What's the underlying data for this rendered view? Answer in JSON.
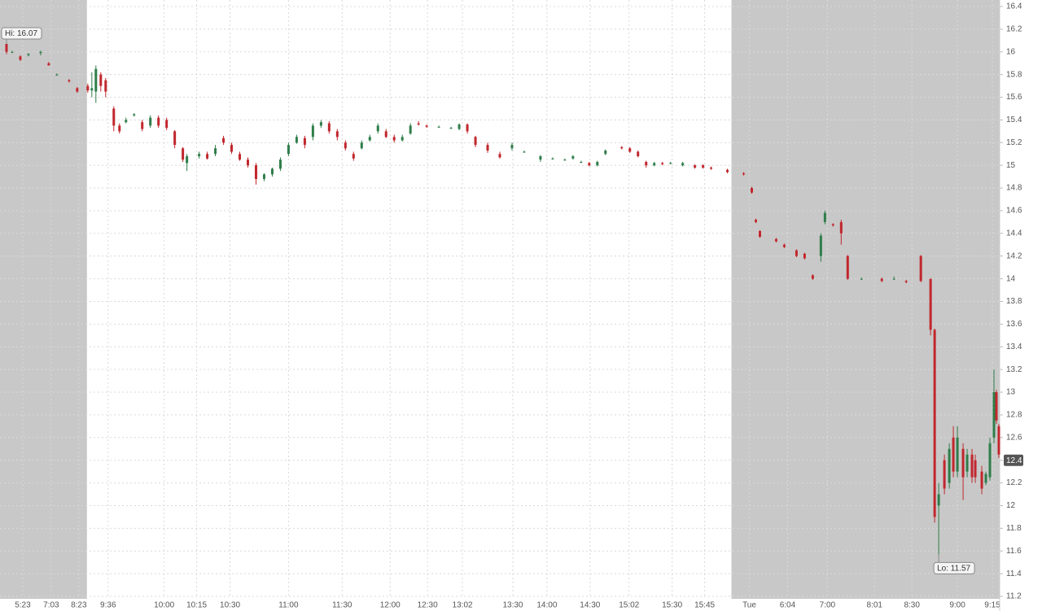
{
  "chart_data": {
    "type": "candlestick",
    "series": {
      "x": [
        0.8,
        1.5,
        2.5,
        3.5,
        5.0,
        6.0,
        7.0,
        8.5,
        9.5,
        10.8,
        11.3,
        11.8,
        12.4,
        13.0,
        14.0,
        14.7,
        15.5,
        16.5,
        17.5,
        18.5,
        19.5,
        20.5,
        21.5,
        22.5,
        23.0,
        24.5,
        25.5,
        26.5,
        27.5,
        28.5,
        29.5,
        30.5,
        31.5,
        32.5,
        33.5,
        34.5,
        35.5,
        36.5,
        37.5,
        38.5,
        39.5,
        40.5,
        41.5,
        42.5,
        43.5,
        44.5,
        45.5,
        46.5,
        47.5,
        48.5,
        49.5,
        50.5,
        51.5,
        52.5,
        54.0,
        55.5,
        56.5,
        57.5,
        58.5,
        60.0,
        61.5,
        63.0,
        64.5,
        66.5,
        68.0,
        69.5,
        70.5,
        71.5,
        72.5,
        73.5,
        74.5,
        76.5,
        77.5,
        78.5,
        79.5,
        80.5,
        81.5,
        82.5,
        84.0,
        85.5,
        86.5,
        87.5,
        89.5,
        91.5,
        92.5,
        93.0,
        93.5,
        95.5,
        96.5,
        98.0,
        99.0,
        100.0,
        101.0,
        101.5,
        102.5,
        103.5,
        104.3,
        106.0,
        108.5,
        110.0,
        111.5,
        113.3,
        114.5,
        115.0,
        115.5,
        116.2,
        116.8,
        117.3,
        117.8,
        118.5,
        119.0,
        119.6,
        120.0,
        120.8,
        121.3,
        121.8,
        122.3,
        122.6,
        122.9
      ],
      "open": [
        16.07,
        16.0,
        15.96,
        15.97,
        15.99,
        15.9,
        15.8,
        15.75,
        15.68,
        15.7,
        15.66,
        15.65,
        15.8,
        15.75,
        15.5,
        15.35,
        15.38,
        15.44,
        15.38,
        15.35,
        15.42,
        15.4,
        15.3,
        15.15,
        15.02,
        15.08,
        15.1,
        15.1,
        15.24,
        15.18,
        15.1,
        15.05,
        15.0,
        14.88,
        14.92,
        14.97,
        15.1,
        15.2,
        15.24,
        15.25,
        15.35,
        15.37,
        15.3,
        15.2,
        15.1,
        15.15,
        15.22,
        15.3,
        15.3,
        15.25,
        15.22,
        15.28,
        15.37,
        15.35,
        15.34,
        15.33,
        15.32,
        15.36,
        15.25,
        15.18,
        15.1,
        15.15,
        15.12,
        15.05,
        15.06,
        15.05,
        15.06,
        15.03,
        15.02,
        15.0,
        15.1,
        15.16,
        15.15,
        15.12,
        15.03,
        15.0,
        15.02,
        15.02,
        15.0,
        15.0,
        15.0,
        14.98,
        14.96,
        14.93,
        14.8,
        14.52,
        14.42,
        14.35,
        14.3,
        14.25,
        14.22,
        14.03,
        14.2,
        14.5,
        14.48,
        14.5,
        14.2,
        14.0,
        14.0,
        14.0,
        13.98,
        14.2,
        14.0,
        13.55,
        12.0,
        12.4,
        12.2,
        12.6,
        12.3,
        12.5,
        12.3,
        12.45,
        12.4,
        12.3,
        12.2,
        12.25,
        12.6,
        13.0,
        12.7
      ],
      "high": [
        16.07,
        16.01,
        15.97,
        15.99,
        16.01,
        15.91,
        15.81,
        15.76,
        15.69,
        15.72,
        15.82,
        15.88,
        15.82,
        15.77,
        15.52,
        15.37,
        15.42,
        15.46,
        15.4,
        15.44,
        15.44,
        15.42,
        15.31,
        15.16,
        15.1,
        15.12,
        15.12,
        15.18,
        15.26,
        15.2,
        15.12,
        15.07,
        15.02,
        14.93,
        14.98,
        15.07,
        15.2,
        15.27,
        15.26,
        15.37,
        15.4,
        15.39,
        15.32,
        15.22,
        15.12,
        15.22,
        15.27,
        15.37,
        15.32,
        15.27,
        15.27,
        15.37,
        15.39,
        15.36,
        15.35,
        15.34,
        15.37,
        15.37,
        15.26,
        15.2,
        15.12,
        15.2,
        15.13,
        15.09,
        15.07,
        15.06,
        15.09,
        15.04,
        15.03,
        15.04,
        15.14,
        15.17,
        15.16,
        15.13,
        15.04,
        15.03,
        15.03,
        15.03,
        15.03,
        15.01,
        15.01,
        14.99,
        14.97,
        14.94,
        14.81,
        14.53,
        14.43,
        14.36,
        14.31,
        14.26,
        14.23,
        14.04,
        14.4,
        14.6,
        14.49,
        14.52,
        14.21,
        14.01,
        14.01,
        14.02,
        13.99,
        14.21,
        14.0,
        13.56,
        12.2,
        12.45,
        12.55,
        12.7,
        12.7,
        12.55,
        12.5,
        12.5,
        12.45,
        12.35,
        12.3,
        12.6,
        13.2,
        13.02,
        12.72
      ],
      "low": [
        15.98,
        15.99,
        15.92,
        15.96,
        15.97,
        15.88,
        15.79,
        15.73,
        15.64,
        15.64,
        15.6,
        15.55,
        15.65,
        15.6,
        15.3,
        15.28,
        15.37,
        15.43,
        15.3,
        15.33,
        15.33,
        15.31,
        15.15,
        15.03,
        14.95,
        15.06,
        15.05,
        15.08,
        15.18,
        15.1,
        15.04,
        14.98,
        14.83,
        14.86,
        14.9,
        14.95,
        15.08,
        15.19,
        15.15,
        15.22,
        15.33,
        15.28,
        15.22,
        15.13,
        15.04,
        15.14,
        15.21,
        15.28,
        15.24,
        15.2,
        15.21,
        15.27,
        15.35,
        15.33,
        15.33,
        15.32,
        15.31,
        15.28,
        15.16,
        15.11,
        15.06,
        15.13,
        15.11,
        15.03,
        15.05,
        15.04,
        15.05,
        15.02,
        14.99,
        14.99,
        15.09,
        15.14,
        15.11,
        15.07,
        14.98,
        14.99,
        15.0,
        15.01,
        14.99,
        14.97,
        14.97,
        14.96,
        14.93,
        14.91,
        14.75,
        14.49,
        14.36,
        14.32,
        14.27,
        14.19,
        14.17,
        13.99,
        14.15,
        14.48,
        14.46,
        14.3,
        13.99,
        13.99,
        13.97,
        13.99,
        13.96,
        13.97,
        13.5,
        11.85,
        11.57,
        12.1,
        12.15,
        12.25,
        12.25,
        12.05,
        12.25,
        12.2,
        12.2,
        12.1,
        12.18,
        12.22,
        12.55,
        12.72,
        12.42
      ],
      "close": [
        16.0,
        16.0,
        15.93,
        15.98,
        16.0,
        15.88,
        15.8,
        15.74,
        15.65,
        15.66,
        15.68,
        15.85,
        15.7,
        15.65,
        15.35,
        15.3,
        15.4,
        15.45,
        15.32,
        15.42,
        15.35,
        15.33,
        15.18,
        15.05,
        15.08,
        15.1,
        15.06,
        15.15,
        15.2,
        15.12,
        15.05,
        15.0,
        14.88,
        14.92,
        14.97,
        15.05,
        15.18,
        15.25,
        15.18,
        15.35,
        15.38,
        15.3,
        15.25,
        15.15,
        15.06,
        15.2,
        15.25,
        15.35,
        15.25,
        15.22,
        15.25,
        15.35,
        15.36,
        15.34,
        15.34,
        15.33,
        15.36,
        15.3,
        15.18,
        15.13,
        15.07,
        15.18,
        15.12,
        15.08,
        15.06,
        15.05,
        15.08,
        15.03,
        15.0,
        15.03,
        15.13,
        15.15,
        15.12,
        15.08,
        15.0,
        15.02,
        15.01,
        15.02,
        15.02,
        14.98,
        14.98,
        14.97,
        14.94,
        14.92,
        14.76,
        14.5,
        14.37,
        14.33,
        14.28,
        14.2,
        14.18,
        14.0,
        14.38,
        14.58,
        14.47,
        14.4,
        14.0,
        14.0,
        13.98,
        14.0,
        13.97,
        13.98,
        13.55,
        11.9,
        12.1,
        12.15,
        12.5,
        12.3,
        12.6,
        12.25,
        12.45,
        12.25,
        12.25,
        12.15,
        12.28,
        12.55,
        13.0,
        12.75,
        12.45
      ]
    },
    "up_color": "#2f7d4a",
    "down_color": "#c1272d",
    "shade_color": "#c8c8c8",
    "xlim": [
      0,
      123
    ],
    "ylim": [
      11.2,
      16.4
    ],
    "xticks": [
      {
        "value": 2.8,
        "label": "5:23"
      },
      {
        "value": 6.3,
        "label": "7:03"
      },
      {
        "value": 9.7,
        "label": "8:23"
      },
      {
        "value": 13.3,
        "label": "9:36"
      },
      {
        "value": 20.2,
        "label": "10:00"
      },
      {
        "value": 24.2,
        "label": "10:15"
      },
      {
        "value": 28.3,
        "label": "10:30"
      },
      {
        "value": 35.5,
        "label": "11:00"
      },
      {
        "value": 42.1,
        "label": "11:30"
      },
      {
        "value": 48.0,
        "label": "12:00"
      },
      {
        "value": 52.6,
        "label": "12:30"
      },
      {
        "value": 56.9,
        "label": "13:02"
      },
      {
        "value": 63.1,
        "label": "13:30"
      },
      {
        "value": 67.3,
        "label": "14:00"
      },
      {
        "value": 72.6,
        "label": "14:30"
      },
      {
        "value": 77.4,
        "label": "15:02"
      },
      {
        "value": 82.7,
        "label": "15:30"
      },
      {
        "value": 86.7,
        "label": "15:45"
      },
      {
        "value": 92.2,
        "label": "Tue"
      },
      {
        "value": 96.9,
        "label": "6:04"
      },
      {
        "value": 101.8,
        "label": "7:00"
      },
      {
        "value": 107.6,
        "label": "8:01"
      },
      {
        "value": 112.2,
        "label": "8:30"
      },
      {
        "value": 117.8,
        "label": "9:00"
      },
      {
        "value": 122.1,
        "label": "9:15"
      }
    ],
    "yticks": [
      16.4,
      16.2,
      16,
      15.8,
      15.6,
      15.4,
      15.2,
      15,
      14.8,
      14.6,
      14.4,
      14.2,
      14,
      13.8,
      13.6,
      13.4,
      13.2,
      13,
      12.8,
      12.6,
      12.4,
      12.2,
      12,
      11.8,
      11.6,
      11.4,
      11.2
    ],
    "grid": true,
    "shaded_x": [
      [
        0,
        10.7
      ],
      [
        90,
        123
      ]
    ],
    "annotations": [
      {
        "text": "Hi: 16.07",
        "x": 0.8,
        "y": 16.07
      },
      {
        "text": "Lo: 11.57",
        "x": 115.5,
        "y": 11.57
      }
    ],
    "last_price": 12.4
  }
}
